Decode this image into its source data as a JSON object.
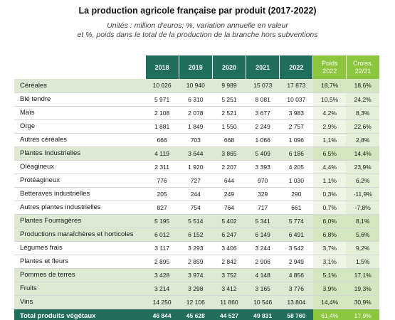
{
  "title": "La production agricole française par produit (2017-2022)",
  "subtitle_line1": "Unités : million d'euros; %, variation annuelle en valeur",
  "subtitle_line2": "et %, poids dans le total de la production de la branche hors subventions",
  "columns": {
    "years": [
      "2018",
      "2019",
      "2020",
      "2021",
      "2022"
    ],
    "poids_l1": "Poids",
    "poids_l2": "2022",
    "croiss_l1": "Croiss.",
    "croiss_l2": "22/21"
  },
  "rows": [
    {
      "label": "Céréales",
      "section": true,
      "values": [
        "10 626",
        "10 940",
        "9 989",
        "15 073",
        "17 873"
      ],
      "poids": "18,7%",
      "croiss": "18,6%"
    },
    {
      "label": "Blé tendre",
      "section": false,
      "values": [
        "5 971",
        "6 310",
        "5 251",
        "8 081",
        "10 037"
      ],
      "poids": "10,5%",
      "croiss": "24,2%"
    },
    {
      "label": "Maïs",
      "section": false,
      "values": [
        "2 108",
        "2 078",
        "2 521",
        "3 677",
        "3 983"
      ],
      "poids": "4,2%",
      "croiss": "8,3%"
    },
    {
      "label": "Orge",
      "section": false,
      "values": [
        "1 881",
        "1 849",
        "1 550",
        "2 249",
        "2 757"
      ],
      "poids": "2,9%",
      "croiss": "22,6%"
    },
    {
      "label": "Autres céréales",
      "section": false,
      "values": [
        "666",
        "703",
        "668",
        "1 066",
        "1 096"
      ],
      "poids": "1,1%",
      "croiss": "2,8%"
    },
    {
      "label": "Plantes Industrielles",
      "section": true,
      "values": [
        "4 119",
        "3 644",
        "3 865",
        "5 409",
        "6 186"
      ],
      "poids": "6,5%",
      "croiss": "14,4%"
    },
    {
      "label": "Oléagineux",
      "section": false,
      "values": [
        "2 311",
        "1 920",
        "2 207",
        "3 393",
        "4 205"
      ],
      "poids": "4,4%",
      "croiss": "23,9%"
    },
    {
      "label": "Protéagineux",
      "section": false,
      "values": [
        "776",
        "727",
        "644",
        "970",
        "1 030"
      ],
      "poids": "1,1%",
      "croiss": "6,2%"
    },
    {
      "label": "Betteraves industrielles",
      "section": false,
      "values": [
        "205",
        "244",
        "249",
        "329",
        "290"
      ],
      "poids": "0,3%",
      "croiss": "-11,9%"
    },
    {
      "label": "Autres plantes industrielles",
      "section": false,
      "values": [
        "827",
        "754",
        "764",
        "717",
        "661"
      ],
      "poids": "0,7%",
      "croiss": "-7,8%"
    },
    {
      "label": "Plantes Fourragères",
      "section": true,
      "values": [
        "5 195",
        "5 514",
        "5 402",
        "5 341",
        "5 774"
      ],
      "poids": "6,0%",
      "croiss": "8,1%"
    },
    {
      "label": "Productions maraîchères et horticoles",
      "section": true,
      "values": [
        "6 012",
        "6 152",
        "6 247",
        "6 149",
        "6 491"
      ],
      "poids": "6,8%",
      "croiss": "5,6%"
    },
    {
      "label": "Légumes frais",
      "section": false,
      "values": [
        "3 117",
        "3 293",
        "3 406",
        "3 244",
        "3 542"
      ],
      "poids": "3,7%",
      "croiss": "9,2%"
    },
    {
      "label": "Plantes et fleurs",
      "section": false,
      "values": [
        "2 895",
        "2 859",
        "2 842",
        "2 906",
        "2 949"
      ],
      "poids": "3,1%",
      "croiss": "1,5%"
    },
    {
      "label": "Pommes de terres",
      "section": true,
      "values": [
        "3 428",
        "3 974",
        "3 752",
        "4 148",
        "4 856"
      ],
      "poids": "5,1%",
      "croiss": "17,1%"
    },
    {
      "label": "Fruits",
      "section": true,
      "values": [
        "3 214",
        "3 298",
        "3 412",
        "3 165",
        "3 776"
      ],
      "poids": "3,9%",
      "croiss": "19,3%"
    },
    {
      "label": "Vins",
      "section": true,
      "values": [
        "14 250",
        "12 106",
        "11 860",
        "10 546",
        "13 804"
      ],
      "poids": "14,4%",
      "croiss": "30,9%"
    }
  ],
  "total": {
    "label": "Total produits végétaux",
    "values": [
      "46 844",
      "45 628",
      "44 527",
      "49 831",
      "58 760"
    ],
    "poids": "61,4%",
    "croiss": "17,9%"
  }
}
